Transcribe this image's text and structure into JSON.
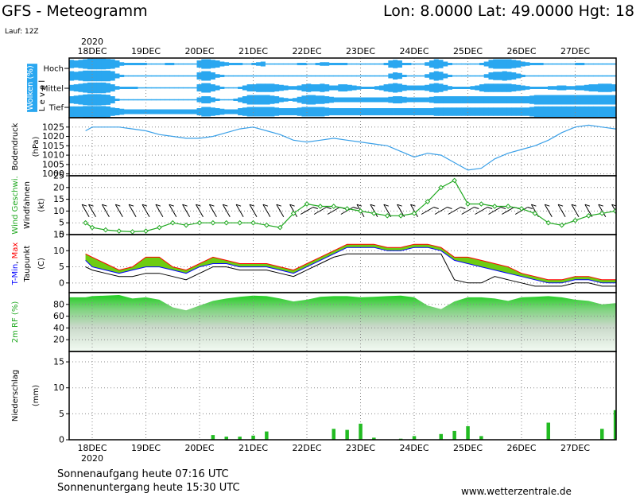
{
  "header": {
    "title": "GFS - Meteogramm",
    "location": "Lon: 8.0000  Lat: 49.0000  Hgt: 18",
    "run": "Lauf: 12Z"
  },
  "year_label": "2020",
  "days": [
    "18DEC",
    "19DEC",
    "20DEC",
    "21DEC",
    "22DEC",
    "23DEC",
    "24DEC",
    "25DEC",
    "26DEC",
    "27DEC"
  ],
  "footer": {
    "sunrise": "Sonnenaufgang heute 07:16 UTC",
    "sunset": "Sonnenuntergang heute 15:30 UTC",
    "website": "www.wetterzentrale.de"
  },
  "colors": {
    "cloud": "#2aa7f0",
    "pressure": "#3aa0e8",
    "wind": "#1fa81f",
    "tmin": "#0000ff",
    "tmax": "#ff0000",
    "fill_green": "#22cc22",
    "fill_yellow": "#cccc00",
    "precip": "#22bb22"
  },
  "chart_data": [
    {
      "type": "heatmap",
      "panel": "clouds",
      "ylabel": "Wolken (%)",
      "ylabel2": "L e v e l",
      "levels": [
        "Hoch",
        "Mittel",
        "Tief"
      ],
      "rows_top_to_bottom_percent": [
        [
          70,
          60,
          70,
          80,
          90,
          90,
          90,
          90,
          85,
          80,
          60,
          30,
          20,
          20,
          20,
          20,
          20,
          10,
          10,
          10,
          10,
          20,
          20,
          10,
          10,
          10,
          10,
          10,
          60,
          80,
          80,
          70,
          60,
          40,
          30,
          20,
          20,
          20,
          10,
          10,
          20,
          30,
          40,
          10,
          10,
          10,
          10,
          10,
          10,
          10,
          20,
          20,
          10,
          10,
          20,
          30,
          30,
          20,
          20,
          20,
          20,
          10,
          10,
          10,
          10,
          10,
          10,
          10,
          10,
          20,
          60,
          70,
          60,
          20,
          20,
          10,
          10,
          10,
          30,
          60,
          80,
          70,
          40,
          20,
          10,
          10,
          10,
          10,
          10,
          10,
          20,
          40,
          70,
          80,
          80,
          80,
          80,
          70,
          60,
          40,
          30,
          20,
          20,
          20,
          10,
          10,
          10,
          10,
          10,
          10,
          10,
          20,
          20,
          10,
          10,
          10,
          10,
          10,
          10,
          10
        ],
        [
          80,
          70,
          80,
          90,
          90,
          90,
          90,
          90,
          90,
          80,
          40,
          20,
          10,
          10,
          10,
          10,
          10,
          10,
          10,
          10,
          10,
          10,
          10,
          10,
          10,
          10,
          10,
          10,
          60,
          80,
          80,
          60,
          30,
          20,
          10,
          10,
          10,
          10,
          10,
          10,
          10,
          10,
          10,
          10,
          10,
          10,
          10,
          10,
          10,
          10,
          10,
          10,
          10,
          10,
          10,
          10,
          10,
          10,
          10,
          10,
          10,
          10,
          10,
          10,
          10,
          10,
          10,
          10,
          10,
          10,
          40,
          60,
          50,
          20,
          10,
          10,
          10,
          10,
          30,
          60,
          80,
          70,
          40,
          20,
          10,
          10,
          10,
          10,
          10,
          10,
          10,
          30,
          60,
          70,
          70,
          80,
          70,
          60,
          40,
          20,
          10,
          10,
          10,
          10,
          10,
          10,
          10,
          10,
          10,
          10,
          10,
          10,
          10,
          10,
          10,
          10,
          10,
          10,
          10,
          10
        ],
        [
          50,
          60,
          70,
          80,
          90,
          90,
          90,
          90,
          80,
          60,
          30,
          20,
          20,
          20,
          20,
          10,
          10,
          10,
          10,
          10,
          10,
          10,
          10,
          10,
          10,
          10,
          10,
          10,
          60,
          80,
          80,
          60,
          40,
          20,
          10,
          10,
          10,
          20,
          40,
          60,
          60,
          70,
          70,
          70,
          70,
          60,
          50,
          40,
          30,
          30,
          40,
          60,
          70,
          60,
          60,
          70,
          60,
          40,
          40,
          60,
          60,
          50,
          40,
          30,
          20,
          20,
          20,
          30,
          40,
          60,
          70,
          80,
          70,
          50,
          40,
          40,
          40,
          40,
          50,
          70,
          80,
          70,
          50,
          30,
          20,
          20,
          20,
          20,
          30,
          40,
          60,
          70,
          70,
          70,
          70,
          70,
          70,
          60,
          50,
          40,
          30,
          20,
          20,
          20,
          20,
          30,
          30,
          40,
          40,
          30,
          30,
          40,
          40,
          50,
          60,
          60,
          70,
          70,
          70,
          60
        ],
        [
          60,
          70,
          80,
          90,
          95,
          95,
          95,
          90,
          85,
          60,
          20,
          10,
          10,
          10,
          10,
          10,
          10,
          10,
          10,
          10,
          10,
          10,
          10,
          10,
          10,
          10,
          10,
          10,
          40,
          60,
          60,
          40,
          20,
          10,
          10,
          10,
          20,
          40,
          60,
          80,
          80,
          80,
          80,
          80,
          70,
          60,
          40,
          30,
          20,
          30,
          50,
          70,
          80,
          80,
          70,
          70,
          60,
          50,
          40,
          40,
          40,
          40,
          40,
          40,
          40,
          40,
          40,
          40,
          40,
          40,
          50,
          60,
          60,
          50,
          40,
          40,
          40,
          40,
          40,
          50,
          60,
          60,
          60,
          60,
          60,
          60,
          60,
          60,
          60,
          60,
          60,
          60,
          60,
          60,
          60,
          60,
          60,
          60,
          60,
          60,
          60,
          70,
          80,
          80,
          80,
          80,
          80,
          80,
          80,
          80,
          80,
          80,
          80,
          80,
          80,
          80,
          80,
          80,
          80,
          80
        ],
        [
          90,
          90,
          90,
          95,
          95,
          95,
          95,
          95,
          90,
          70,
          60,
          50,
          40,
          40,
          40,
          40,
          40,
          40,
          40,
          40,
          40,
          40,
          40,
          40,
          40,
          40,
          40,
          40,
          60,
          80,
          80,
          70,
          60,
          50,
          40,
          40,
          40,
          60,
          70,
          80,
          80,
          80,
          80,
          80,
          80,
          70,
          60,
          60,
          60,
          60,
          70,
          80,
          80,
          80,
          80,
          80,
          70,
          60,
          60,
          60,
          60,
          60,
          60,
          60,
          60,
          60,
          60,
          60,
          60,
          60,
          60,
          60,
          60,
          60,
          60,
          60,
          60,
          60,
          60,
          60,
          70,
          70,
          70,
          70,
          70,
          70,
          70,
          70,
          70,
          70,
          70,
          70,
          70,
          70,
          70,
          70,
          70,
          70,
          70,
          70,
          70,
          80,
          90,
          90,
          90,
          90,
          90,
          90,
          90,
          90,
          90,
          90,
          90,
          90,
          90,
          90,
          90,
          90,
          90,
          90
        ]
      ]
    },
    {
      "type": "line",
      "panel": "pressure",
      "ylabel": "Bodendruck",
      "ylabel2": "(hPa)",
      "ylim": [
        999,
        1030
      ],
      "yticks": [
        1000,
        1005,
        1010,
        1015,
        1020,
        1025
      ],
      "x_hours_from_18DEC_00UTC": [
        -3,
        0,
        6,
        12,
        18,
        24,
        30,
        36,
        42,
        48,
        54,
        60,
        66,
        72,
        78,
        84,
        90,
        96,
        102,
        108,
        114,
        120,
        126,
        132,
        138,
        144,
        150,
        156,
        162,
        168,
        174,
        180,
        186,
        192,
        198,
        204,
        210,
        216,
        222,
        228,
        234,
        240,
        246,
        252
      ],
      "values": [
        1023,
        1025,
        1025,
        1025,
        1024,
        1023,
        1021,
        1020,
        1019,
        1019,
        1020,
        1022,
        1024,
        1025,
        1023,
        1021,
        1018,
        1017,
        1018,
        1019,
        1018,
        1017,
        1016,
        1015,
        1012,
        1009,
        1011,
        1010,
        1006,
        1002,
        1003,
        1008,
        1011,
        1013,
        1015,
        1018,
        1022,
        1025,
        1026,
        1025,
        1024,
        1020,
        1015,
        1009
      ]
    },
    {
      "type": "line",
      "panel": "wind",
      "ylabel": "Wind Geschwi.",
      "ylabel2": "Windfahnen",
      "ylabel3": "(kt)",
      "ylim": [
        0,
        25
      ],
      "yticks": [
        0,
        5,
        10,
        15,
        20,
        25
      ],
      "x_hours_from_18DEC_00UTC": [
        -3,
        0,
        6,
        12,
        18,
        24,
        30,
        36,
        42,
        48,
        54,
        60,
        66,
        72,
        78,
        84,
        90,
        96,
        102,
        108,
        114,
        120,
        126,
        132,
        138,
        144,
        150,
        156,
        162,
        168,
        174,
        180,
        186,
        192,
        198,
        204,
        210,
        216,
        222,
        228,
        234,
        240,
        246,
        252
      ],
      "values": [
        5,
        3,
        2,
        1.5,
        1.2,
        1.5,
        3,
        5,
        4,
        5,
        5,
        5,
        5,
        5,
        4,
        3,
        9,
        13,
        12,
        12,
        11,
        10,
        9,
        8,
        8,
        9,
        14,
        20,
        23,
        13,
        13,
        12,
        12,
        11,
        9,
        5,
        4,
        6,
        8,
        9,
        10,
        14,
        19,
        23
      ]
    },
    {
      "type": "area",
      "panel": "temperature",
      "ylabel": "T-Min, Max",
      "ylabel2": "Taupunkt",
      "ylabel3": "(C)",
      "ylim": [
        -3,
        15
      ],
      "yticks": [
        0,
        5,
        10,
        15
      ],
      "x_hours_from_18DEC_00UTC": [
        -3,
        0,
        6,
        12,
        18,
        24,
        30,
        36,
        42,
        48,
        54,
        60,
        66,
        72,
        78,
        84,
        90,
        96,
        102,
        108,
        114,
        120,
        126,
        132,
        138,
        144,
        150,
        156,
        162,
        168,
        174,
        180,
        186,
        192,
        198,
        204,
        210,
        216,
        222,
        228,
        234,
        240,
        246,
        252
      ],
      "series": [
        {
          "name": "Max",
          "values": [
            9,
            8,
            6,
            4,
            5,
            8,
            8,
            5,
            4,
            6,
            8,
            7,
            6,
            6,
            6,
            5,
            4,
            6,
            8,
            10,
            12,
            12,
            12,
            11,
            11,
            12,
            12,
            11,
            8,
            8,
            7,
            6,
            5,
            3,
            2,
            1,
            1,
            2,
            2,
            1,
            1,
            2,
            3,
            4
          ]
        },
        {
          "name": "Min",
          "values": [
            7,
            5,
            4,
            3,
            4,
            5,
            5,
            4,
            3,
            5,
            6,
            6,
            5,
            5,
            5,
            4,
            3,
            5,
            7,
            9,
            11,
            11,
            11,
            10,
            10,
            11,
            11,
            10,
            7,
            6,
            5,
            4,
            3,
            2,
            1,
            0,
            0,
            1,
            1,
            0,
            0,
            1,
            2,
            3
          ]
        },
        {
          "name": "Taupunkt",
          "values": [
            5,
            4,
            3,
            2,
            2,
            3,
            3,
            2,
            1,
            3,
            5,
            5,
            4,
            4,
            4,
            3,
            2,
            4,
            6,
            8,
            9,
            9,
            9,
            9,
            9,
            9,
            9,
            9,
            1,
            0,
            0,
            2,
            1,
            0,
            -1,
            -1,
            -1,
            0,
            0,
            -1,
            -1,
            0,
            1,
            1
          ]
        }
      ]
    },
    {
      "type": "area",
      "panel": "humidity",
      "ylabel": "2m RF (%)",
      "ylim": [
        0,
        100
      ],
      "yticks": [
        20,
        40,
        60,
        80
      ],
      "x_hours_from_18DEC_00UTC": [
        -3,
        0,
        6,
        12,
        18,
        24,
        30,
        36,
        42,
        48,
        54,
        60,
        66,
        72,
        78,
        84,
        90,
        96,
        102,
        108,
        114,
        120,
        126,
        132,
        138,
        144,
        150,
        156,
        162,
        168,
        174,
        180,
        186,
        192,
        198,
        204,
        210,
        216,
        222,
        228,
        234,
        240,
        246,
        252
      ],
      "values": [
        92,
        94,
        95,
        96,
        90,
        92,
        88,
        75,
        70,
        78,
        86,
        90,
        93,
        95,
        94,
        90,
        85,
        88,
        93,
        94,
        94,
        92,
        93,
        94,
        95,
        92,
        78,
        72,
        85,
        92,
        92,
        90,
        86,
        92,
        93,
        94,
        92,
        88,
        86,
        80,
        82,
        88,
        92,
        92
      ]
    },
    {
      "type": "bar",
      "panel": "precipitation",
      "ylabel": "Niederschlag",
      "ylabel2": "(mm)",
      "ylim": [
        0,
        17
      ],
      "yticks": [
        0,
        5,
        10,
        15
      ],
      "x_hours_from_18DEC_00UTC": [
        54,
        60,
        66,
        72,
        78,
        84,
        90,
        96,
        102,
        108,
        114,
        120,
        126,
        132,
        138,
        144,
        150,
        156,
        162,
        168,
        174,
        180,
        186,
        192,
        198,
        204,
        210,
        216,
        222,
        228,
        234,
        240,
        246,
        252
      ],
      "values": [
        0.9,
        0.6,
        0.6,
        0.8,
        1.6,
        0,
        0,
        0,
        0,
        2.1,
        1.9,
        3.1,
        0.4,
        0,
        0.2,
        0.7,
        0,
        1.1,
        1.7,
        2.6,
        0.7,
        0,
        0,
        0,
        0,
        3.3,
        0,
        0,
        0,
        2.1,
        5.7,
        1.5,
        0.3,
        0
      ]
    }
  ]
}
